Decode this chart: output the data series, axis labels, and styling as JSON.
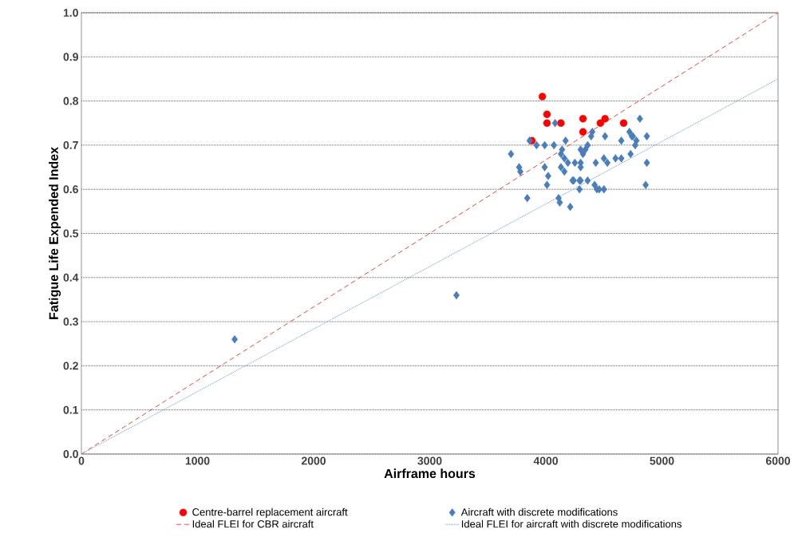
{
  "chart_data": {
    "type": "scatter",
    "xlabel": "Airframe hours",
    "ylabel": "Fatigue Life Expended Index",
    "xlim": [
      0,
      6000
    ],
    "ylim": [
      0,
      1.0
    ],
    "xticks": [
      0,
      1000,
      2000,
      3000,
      4000,
      5000,
      6000
    ],
    "yticks": [
      {
        "value": 0,
        "label": "0.0"
      },
      {
        "value": 0.1,
        "label": "0.1"
      },
      {
        "value": 0.2,
        "label": "0.2"
      },
      {
        "value": 0.3,
        "label": "0.3"
      },
      {
        "value": 0.4,
        "label": "0.4"
      },
      {
        "value": 0.5,
        "label": "0.5"
      },
      {
        "value": 0.6,
        "label": "0.6"
      },
      {
        "value": 0.7,
        "label": "0.7"
      },
      {
        "value": 0.8,
        "label": "0.8"
      },
      {
        "value": 0.9,
        "label": "0.9"
      },
      {
        "value": 1.0,
        "label": "1.0"
      }
    ],
    "grid": "y",
    "legend": "bottom",
    "series": [
      {
        "name": "Centre-barrel replacement aircraft",
        "marker": "circle",
        "color": "#ff0000",
        "x": [
          3970,
          4010,
          4010,
          4130,
          4320,
          4320,
          4470,
          4510,
          4670,
          3880
        ],
        "values": [
          0.81,
          0.77,
          0.75,
          0.75,
          0.76,
          0.73,
          0.75,
          0.76,
          0.75,
          0.71
        ]
      },
      {
        "name": "Aircraft with discrete modifications",
        "marker": "diamond",
        "color": "#4a7ebb",
        "x": [
          4810,
          4080,
          4400,
          4390,
          4510,
          4720,
          4740,
          4750,
          4870,
          3860,
          4170,
          4650,
          4780,
          3920,
          3990,
          4070,
          4360,
          4770,
          4140,
          4300,
          4320,
          4340,
          3700,
          4130,
          4160,
          4600,
          4650,
          4730,
          4500,
          4190,
          4250,
          4430,
          4530,
          4300,
          4870,
          3770,
          3990,
          4130,
          4300,
          3780,
          4160,
          4020,
          4230,
          4240,
          4290,
          4300,
          4360,
          4420,
          4010,
          4860,
          4290,
          4440,
          4460,
          4500,
          4110,
          3840,
          4120,
          4210,
          1320,
          3230
        ],
        "values": [
          0.76,
          0.75,
          0.73,
          0.72,
          0.72,
          0.73,
          0.72,
          0.72,
          0.72,
          0.71,
          0.71,
          0.71,
          0.71,
          0.7,
          0.7,
          0.7,
          0.7,
          0.7,
          0.69,
          0.69,
          0.68,
          0.69,
          0.68,
          0.68,
          0.67,
          0.67,
          0.67,
          0.68,
          0.67,
          0.66,
          0.66,
          0.66,
          0.66,
          0.66,
          0.66,
          0.65,
          0.65,
          0.65,
          0.65,
          0.64,
          0.64,
          0.63,
          0.62,
          0.62,
          0.62,
          0.62,
          0.62,
          0.61,
          0.61,
          0.61,
          0.6,
          0.6,
          0.6,
          0.6,
          0.58,
          0.58,
          0.57,
          0.56,
          0.26,
          0.36
        ]
      },
      {
        "name": "Ideal FLEI for CBR aircraft",
        "type": "line",
        "line_style": "dashed",
        "marker": "none",
        "color": "#ff4040",
        "x": [
          0,
          6000
        ],
        "values": [
          0,
          1.0
        ]
      },
      {
        "name": "Ideal FLEI for aircraft with discrete modifications",
        "type": "line",
        "line_style": "dotted",
        "marker": "none",
        "color": "#6f9bd6",
        "x": [
          0,
          6000
        ],
        "values": [
          0,
          0.85
        ]
      }
    ]
  }
}
